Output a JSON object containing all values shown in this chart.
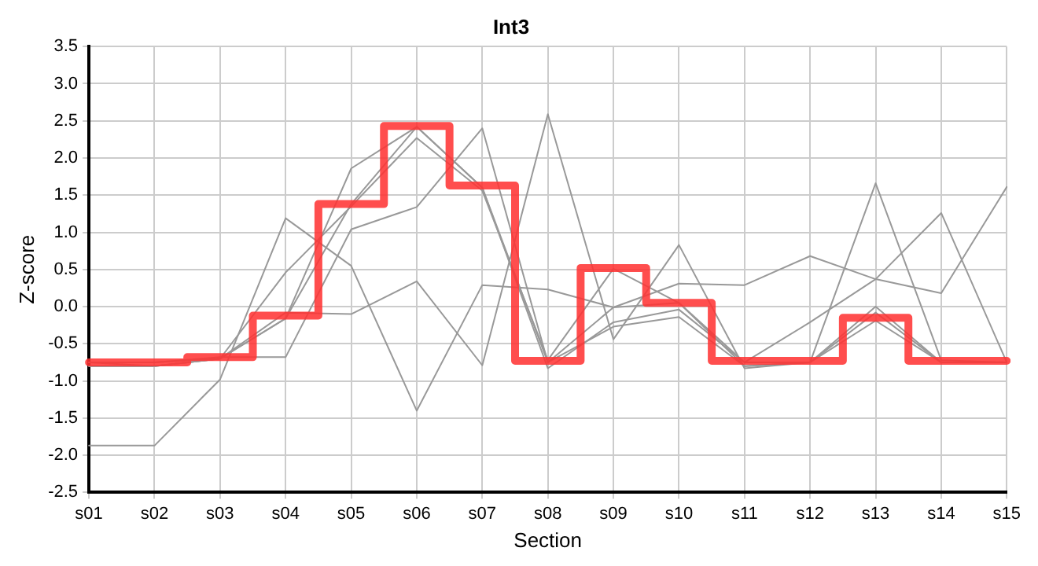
{
  "chart_data": {
    "type": "line",
    "title": "Int3",
    "xlabel": "Section",
    "ylabel": "Z-score",
    "categories": [
      "s01",
      "s02",
      "s03",
      "s04",
      "s05",
      "s06",
      "s07",
      "s08",
      "s09",
      "s10",
      "s11",
      "s12",
      "s13",
      "s14",
      "s15"
    ],
    "ylim": [
      -2.5,
      3.5
    ],
    "yticks": [
      {
        "value": -2.5,
        "label": "-2.5"
      },
      {
        "value": -2,
        "label": "-2.0"
      },
      {
        "value": -1.5,
        "label": "-1.5"
      },
      {
        "value": -1,
        "label": "-1.0"
      },
      {
        "value": -0.5,
        "label": "-0.5"
      },
      {
        "value": 0,
        "label": "0.0"
      },
      {
        "value": 0.5,
        "label": "0.5"
      },
      {
        "value": 1,
        "label": "1.0"
      },
      {
        "value": 1.5,
        "label": "1.5"
      },
      {
        "value": 2,
        "label": "2.0"
      },
      {
        "value": 2.5,
        "label": "2.5"
      },
      {
        "value": 3,
        "label": "3.0"
      },
      {
        "value": 3.5,
        "label": "3.5"
      }
    ],
    "grid": true,
    "marker": "none",
    "series": [
      {
        "color": "#999999",
        "values": [
          -0.75,
          -0.75,
          -0.68,
          -0.68,
          1.04,
          1.34,
          2.4,
          -0.75,
          -0.01,
          0.05,
          -0.8,
          -0.75,
          0.0,
          -0.75,
          -0.75
        ]
      },
      {
        "color": "#999999",
        "values": [
          -1.87,
          -1.87,
          -0.98,
          1.19,
          0.55,
          -1.4,
          0.29,
          0.23,
          -0.01,
          0.31,
          0.29,
          0.68,
          0.37,
          0.18,
          1.61
        ]
      },
      {
        "color": "#999999",
        "values": [
          -0.8,
          -0.8,
          -0.7,
          -0.08,
          -0.1,
          0.34,
          -0.79,
          2.59,
          -0.44,
          0.83,
          -0.83,
          -0.75,
          1.66,
          -0.72,
          -0.75
        ]
      },
      {
        "color": "#999999",
        "values": [
          -0.75,
          -0.75,
          -0.7,
          0.46,
          1.35,
          2.27,
          1.56,
          -0.72,
          0.51,
          0.05,
          -0.75,
          -0.21,
          0.37,
          1.26,
          -0.75
        ]
      },
      {
        "color": "#999999",
        "values": [
          -0.75,
          -0.8,
          -0.7,
          -0.16,
          1.86,
          2.42,
          1.6,
          -0.83,
          -0.21,
          -0.04,
          -0.75,
          -0.75,
          -0.08,
          -0.75,
          -0.75
        ]
      },
      {
        "color": "#999999",
        "values": [
          -0.8,
          -0.8,
          -0.7,
          -0.16,
          1.38,
          2.42,
          1.6,
          -0.75,
          -0.27,
          -0.14,
          -0.8,
          -0.75,
          -0.19,
          -0.75,
          -0.75
        ]
      },
      {
        "type": "step",
        "color": "#ff3333",
        "values": [
          -0.75,
          -0.75,
          -0.68,
          -0.12,
          1.38,
          2.43,
          1.63,
          -0.73,
          0.52,
          0.05,
          -0.73,
          -0.73,
          -0.15,
          -0.73,
          -0.73
        ]
      }
    ]
  }
}
